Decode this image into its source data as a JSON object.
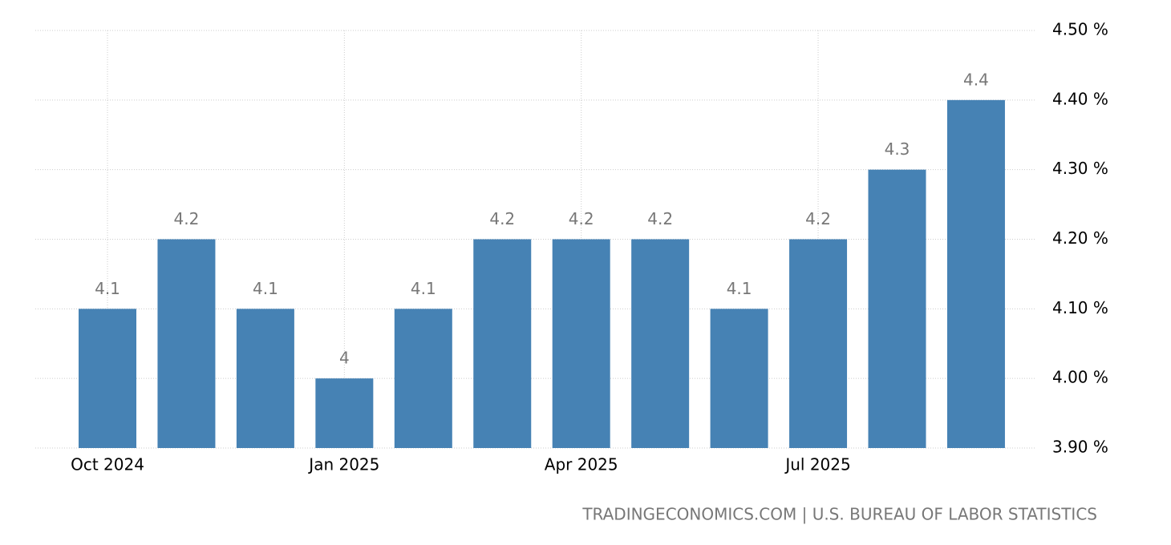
{
  "chart_data": {
    "type": "bar",
    "categories": [
      "Oct 2024",
      null,
      null,
      "Jan 2025",
      null,
      null,
      "Apr 2025",
      null,
      null,
      "Jul 2025",
      null,
      null
    ],
    "values": [
      4.1,
      4.2,
      4.1,
      4,
      4.1,
      4.2,
      4.2,
      4.2,
      4.1,
      4.2,
      4.3,
      4.4
    ],
    "color": "#4682b4",
    "ylim": [
      3.9,
      4.5
    ],
    "yticks": [
      {
        "value": 3.9,
        "label": "3.90 %"
      },
      {
        "value": 4.0,
        "label": "4.00 %"
      },
      {
        "value": 4.1,
        "label": "4.10 %"
      },
      {
        "value": 4.2,
        "label": "4.20 %"
      },
      {
        "value": 4.3,
        "label": "4.30 %"
      },
      {
        "value": 4.4,
        "label": "4.40 %"
      },
      {
        "value": 4.5,
        "label": "4.50 %"
      }
    ],
    "grid": true,
    "source": "TRADINGECONOMICS.COM | U.S. BUREAU OF LABOR STATISTICS"
  }
}
